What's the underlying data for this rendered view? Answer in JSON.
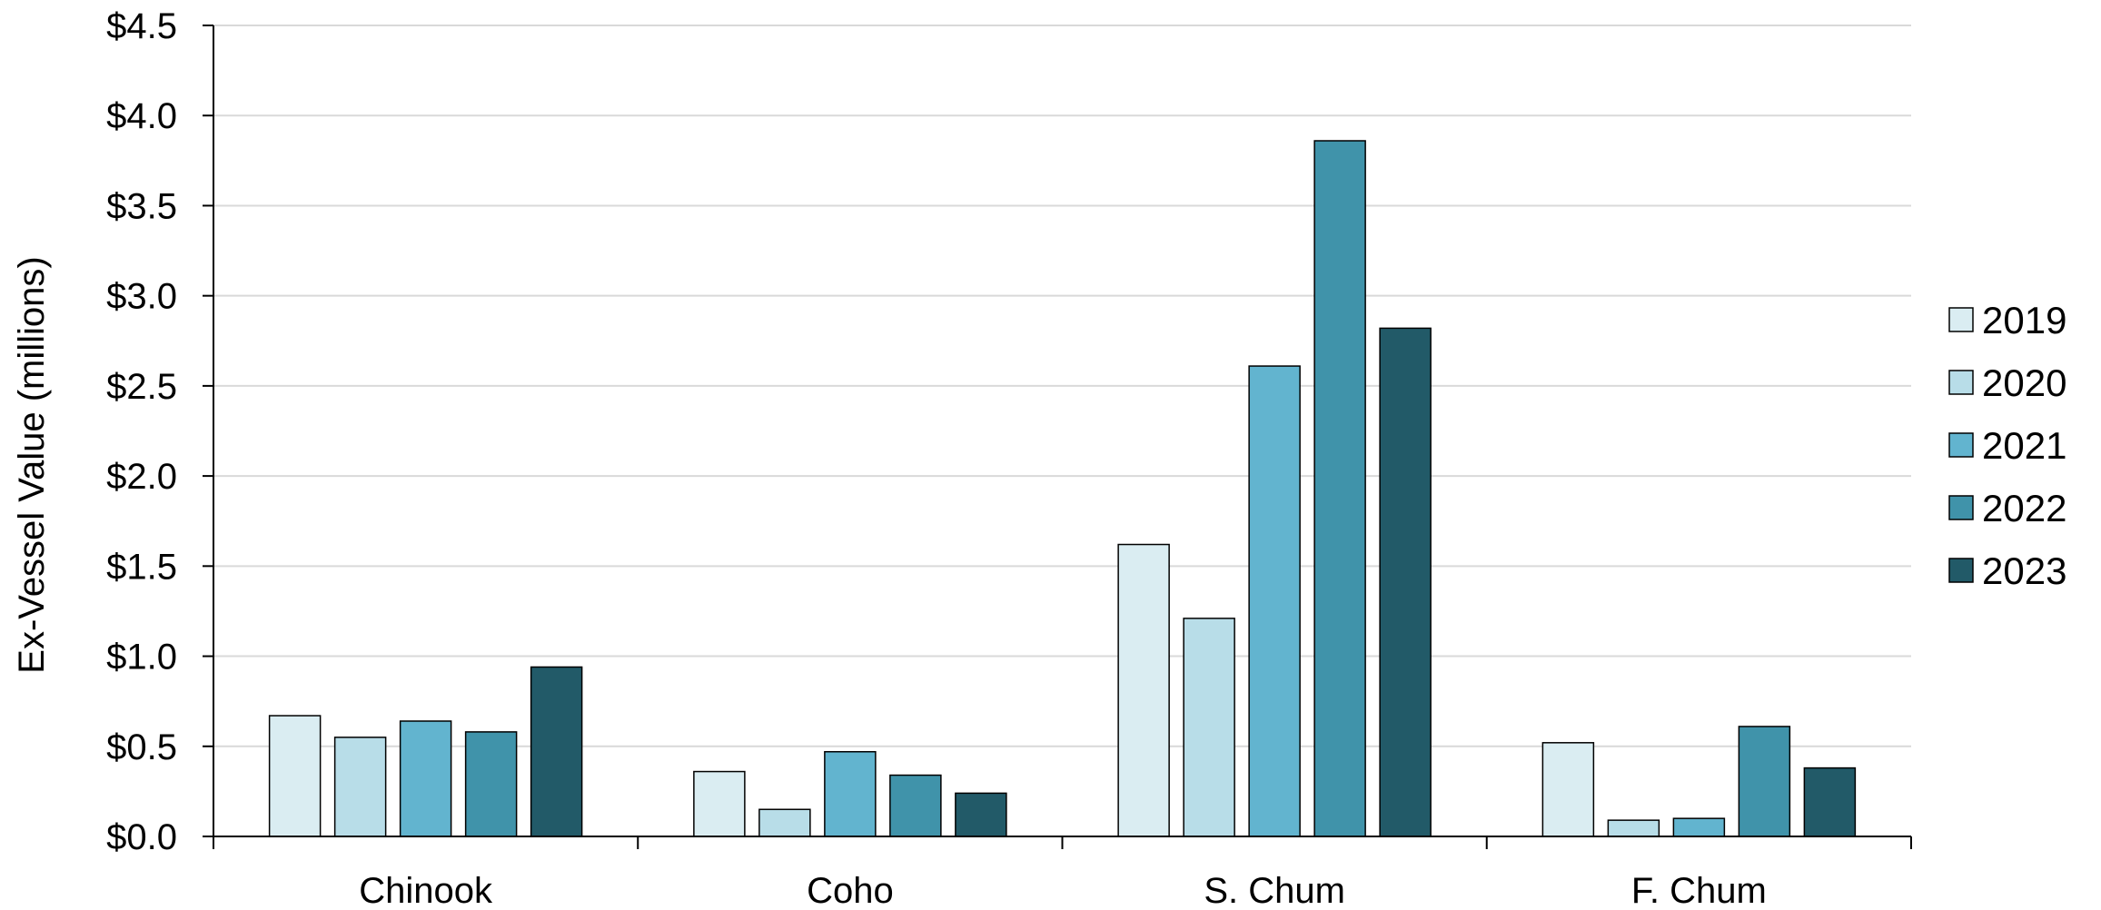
{
  "chart_data": {
    "type": "bar",
    "title": "",
    "xlabel": "",
    "ylabel": "Ex-Vessel Value (millions)",
    "ylim": [
      0,
      4.5
    ],
    "y_ticks": [
      "$0.0",
      "$0.5",
      "$1.0",
      "$1.5",
      "$2.0",
      "$2.5",
      "$3.0",
      "$3.5",
      "$4.0",
      "$4.5"
    ],
    "y_tick_values": [
      0,
      0.5,
      1.0,
      1.5,
      2.0,
      2.5,
      3.0,
      3.5,
      4.0,
      4.5
    ],
    "grid": true,
    "legend_position": "right",
    "categories": [
      "Chinook",
      "Coho",
      "S. Chum",
      "F. Chum"
    ],
    "series": [
      {
        "name": "2019",
        "color": "#daedf2",
        "values": [
          0.67,
          0.36,
          1.62,
          0.52
        ]
      },
      {
        "name": "2020",
        "color": "#b8dde8",
        "values": [
          0.55,
          0.15,
          1.21,
          0.09
        ]
      },
      {
        "name": "2021",
        "color": "#62b4cf",
        "values": [
          0.64,
          0.47,
          2.61,
          0.1
        ]
      },
      {
        "name": "2022",
        "color": "#4093aa",
        "values": [
          0.58,
          0.34,
          3.86,
          0.61
        ]
      },
      {
        "name": "2023",
        "color": "#225a68",
        "values": [
          0.94,
          0.24,
          2.82,
          0.38
        ]
      }
    ]
  }
}
